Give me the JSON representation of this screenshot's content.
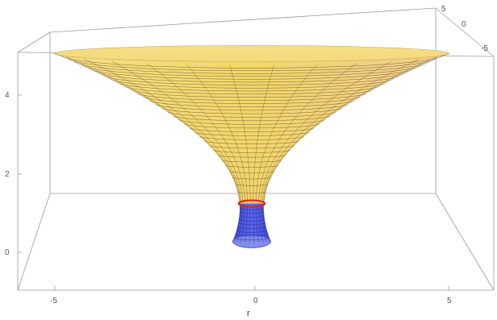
{
  "chart_data": {
    "type": "surface3d",
    "title": "",
    "x_label": "r",
    "x_ticks": [
      "-5",
      "0",
      "5"
    ],
    "z_ticks": [
      "0",
      "2",
      "4"
    ],
    "y_ticks": [
      "5",
      "0",
      "-5"
    ],
    "xlim": [
      -6,
      6
    ],
    "ylim": [
      -6,
      6
    ],
    "zlim": [
      -1,
      5.2
    ],
    "surfaces": [
      {
        "name": "",
        "region": "upper",
        "z_range": [
          1.24,
          5.1
        ],
        "r_range": [
          0.38,
          6.0
        ],
        "color": "#f3d56a"
      },
      {
        "name": "",
        "region": "lower",
        "z_range": [
          0.28,
          1.24
        ],
        "r_range": [
          0.34,
          0.55
        ],
        "color": "#5560e6"
      }
    ],
    "highlight_ring": {
      "z": 1.24,
      "color": "#e0201c"
    }
  }
}
